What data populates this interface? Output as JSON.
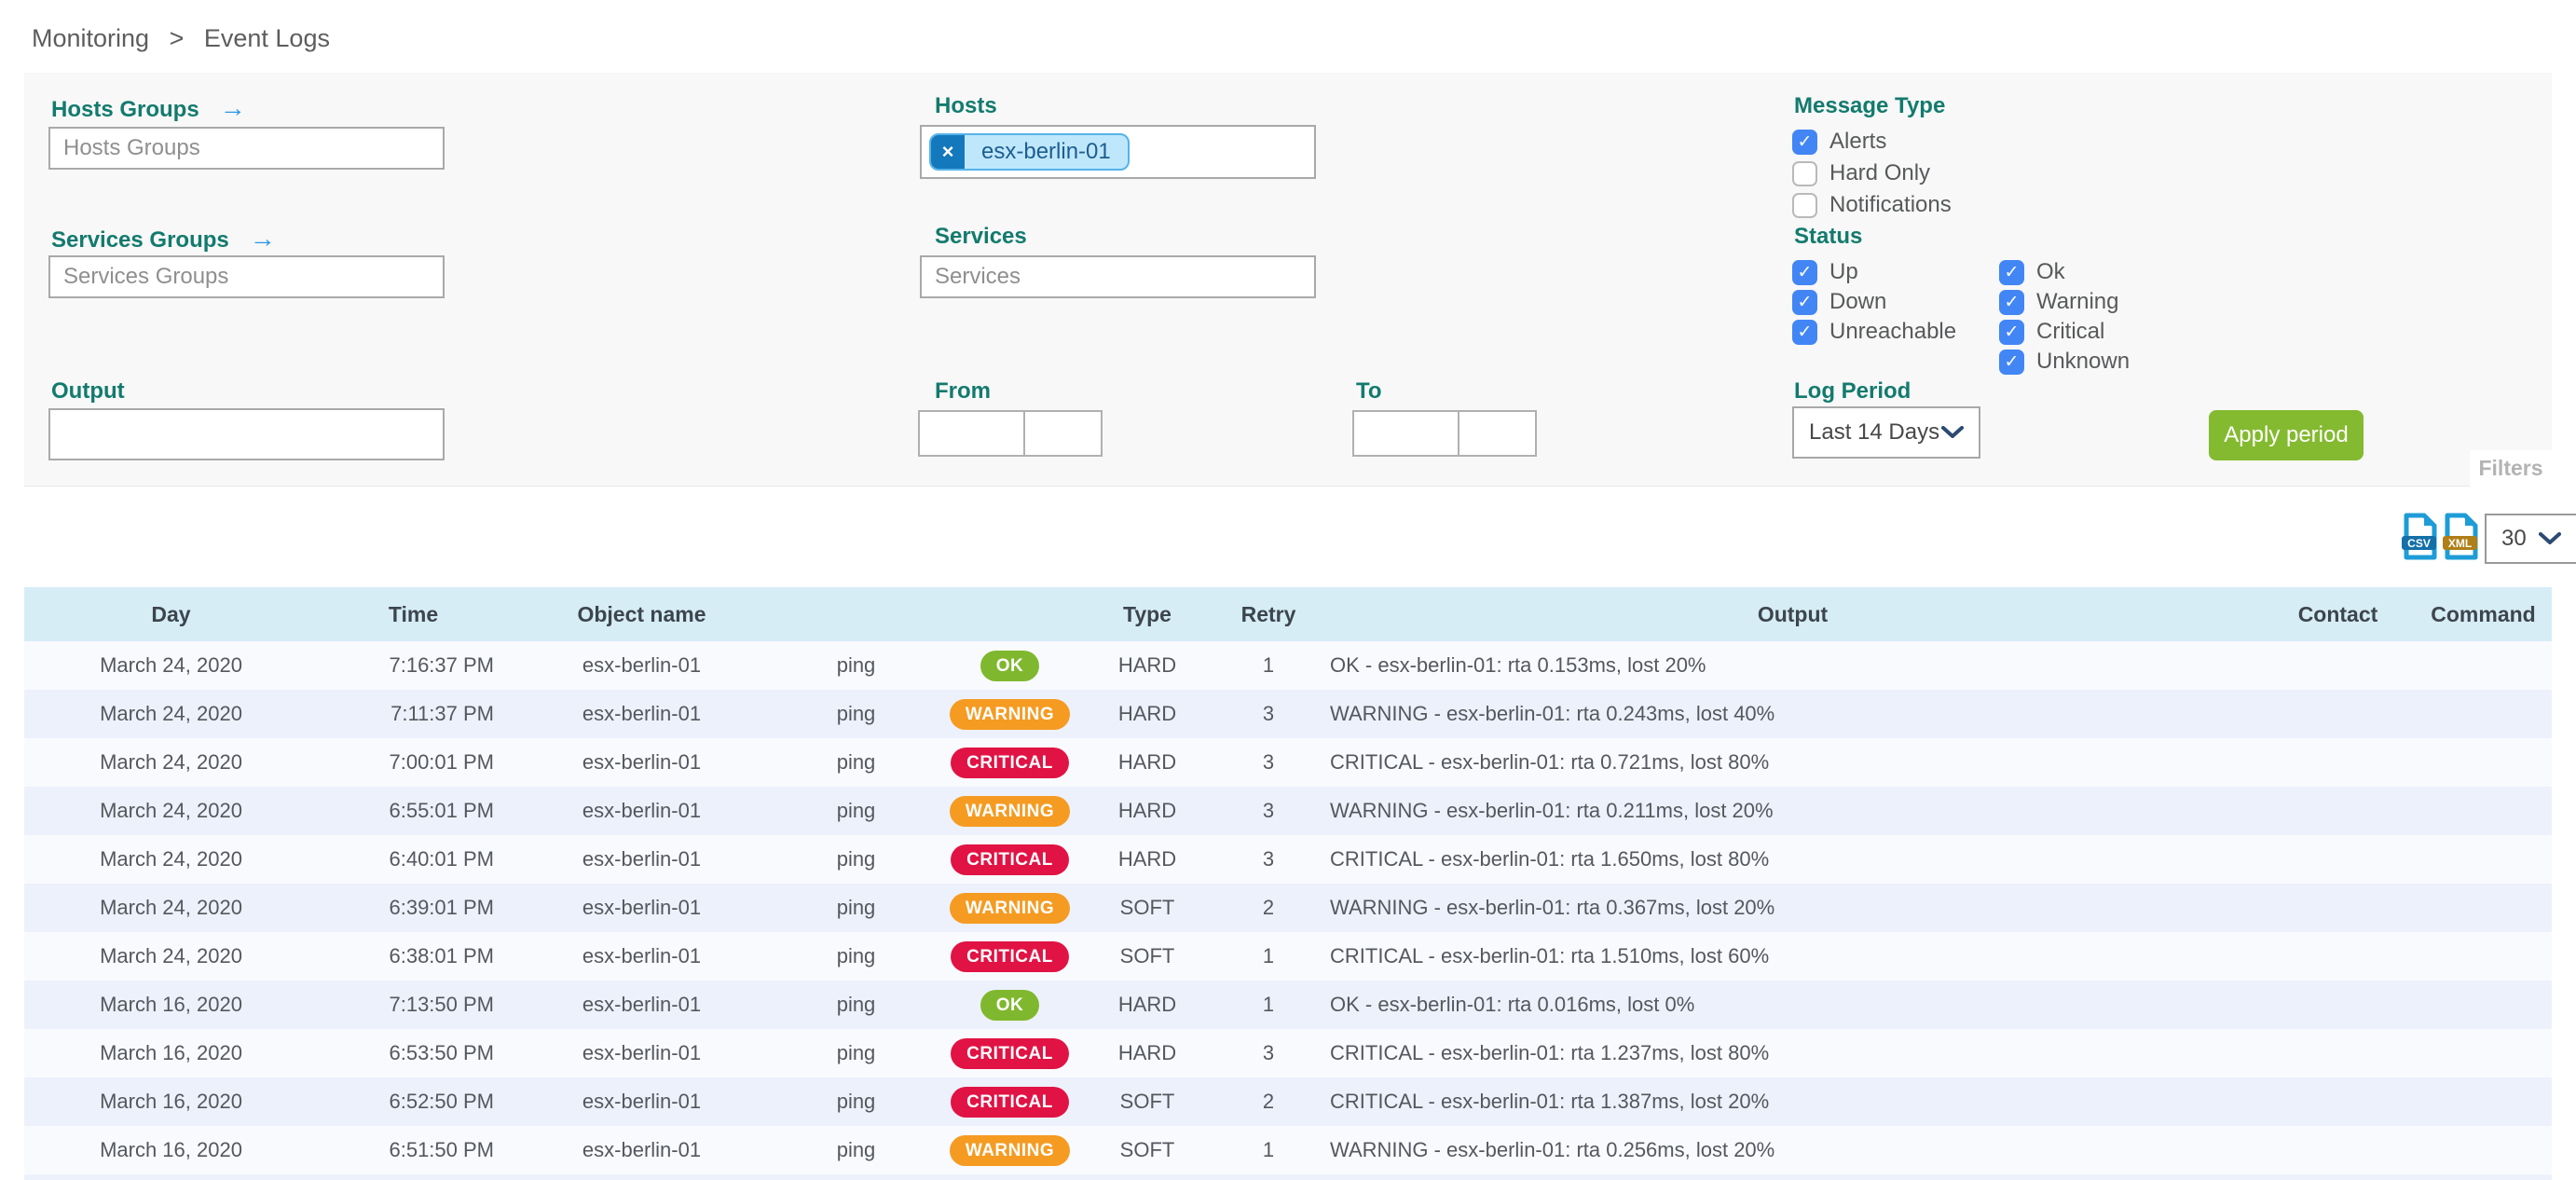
{
  "breadcrumb": {
    "items": [
      "Monitoring",
      "Event Logs"
    ],
    "separator": ">"
  },
  "filters": {
    "tab_label": "Filters",
    "hosts_groups": {
      "label": "Hosts Groups",
      "placeholder": "Hosts Groups"
    },
    "services_groups": {
      "label": "Services Groups",
      "placeholder": "Services Groups"
    },
    "hosts": {
      "label": "Hosts",
      "chips": [
        "esx-berlin-01"
      ]
    },
    "services": {
      "label": "Services",
      "placeholder": "Services"
    },
    "output": {
      "label": "Output",
      "value": ""
    },
    "from": {
      "label": "From",
      "date_value": "",
      "time_value": ""
    },
    "to": {
      "label": "To",
      "date_value": "",
      "time_value": ""
    },
    "message_type": {
      "label": "Message Type",
      "options": [
        {
          "label": "Alerts",
          "checked": true
        },
        {
          "label": "Hard Only",
          "checked": false
        },
        {
          "label": "Notifications",
          "checked": false
        }
      ]
    },
    "status": {
      "label": "Status",
      "col1": [
        {
          "label": "Up",
          "checked": true
        },
        {
          "label": "Down",
          "checked": true
        },
        {
          "label": "Unreachable",
          "checked": true
        }
      ],
      "col2": [
        {
          "label": "Ok",
          "checked": true
        },
        {
          "label": "Warning",
          "checked": true
        },
        {
          "label": "Critical",
          "checked": true
        },
        {
          "label": "Unknown",
          "checked": true
        }
      ]
    },
    "log_period": {
      "label": "Log Period",
      "selected": "Last 14 Days"
    },
    "apply_button": "Apply period"
  },
  "toolbar": {
    "csv_export": "CSV",
    "xml_export": "XML",
    "page_size": "30"
  },
  "table": {
    "headers": {
      "day": "Day",
      "time": "Time",
      "object": "Object name",
      "service": "",
      "status": "",
      "type": "Type",
      "retry": "Retry",
      "output": "Output",
      "contact": "Contact",
      "command": "Command"
    },
    "rows": [
      {
        "day": "March 24, 2020",
        "time": "7:16:37 PM",
        "object": "esx-berlin-01",
        "service": "ping",
        "status": "OK",
        "type": "HARD",
        "retry": "1",
        "output": "OK - esx-berlin-01: rta 0.153ms, lost 20%",
        "contact": "",
        "command": ""
      },
      {
        "day": "March 24, 2020",
        "time": "7:11:37 PM",
        "object": "esx-berlin-01",
        "service": "ping",
        "status": "WARNING",
        "type": "HARD",
        "retry": "3",
        "output": "WARNING - esx-berlin-01: rta 0.243ms, lost 40%",
        "contact": "",
        "command": ""
      },
      {
        "day": "March 24, 2020",
        "time": "7:00:01 PM",
        "object": "esx-berlin-01",
        "service": "ping",
        "status": "CRITICAL",
        "type": "HARD",
        "retry": "3",
        "output": "CRITICAL - esx-berlin-01: rta 0.721ms, lost 80%",
        "contact": "",
        "command": ""
      },
      {
        "day": "March 24, 2020",
        "time": "6:55:01 PM",
        "object": "esx-berlin-01",
        "service": "ping",
        "status": "WARNING",
        "type": "HARD",
        "retry": "3",
        "output": "WARNING - esx-berlin-01: rta 0.211ms, lost 20%",
        "contact": "",
        "command": ""
      },
      {
        "day": "March 24, 2020",
        "time": "6:40:01 PM",
        "object": "esx-berlin-01",
        "service": "ping",
        "status": "CRITICAL",
        "type": "HARD",
        "retry": "3",
        "output": "CRITICAL - esx-berlin-01: rta 1.650ms, lost 80%",
        "contact": "",
        "command": ""
      },
      {
        "day": "March 24, 2020",
        "time": "6:39:01 PM",
        "object": "esx-berlin-01",
        "service": "ping",
        "status": "WARNING",
        "type": "SOFT",
        "retry": "2",
        "output": "WARNING - esx-berlin-01: rta 0.367ms, lost 20%",
        "contact": "",
        "command": ""
      },
      {
        "day": "March 24, 2020",
        "time": "6:38:01 PM",
        "object": "esx-berlin-01",
        "service": "ping",
        "status": "CRITICAL",
        "type": "SOFT",
        "retry": "1",
        "output": "CRITICAL - esx-berlin-01: rta 1.510ms, lost 60%",
        "contact": "",
        "command": ""
      },
      {
        "day": "March 16, 2020",
        "time": "7:13:50 PM",
        "object": "esx-berlin-01",
        "service": "ping",
        "status": "OK",
        "type": "HARD",
        "retry": "1",
        "output": "OK - esx-berlin-01: rta 0.016ms, lost 0%",
        "contact": "",
        "command": ""
      },
      {
        "day": "March 16, 2020",
        "time": "6:53:50 PM",
        "object": "esx-berlin-01",
        "service": "ping",
        "status": "CRITICAL",
        "type": "HARD",
        "retry": "3",
        "output": "CRITICAL - esx-berlin-01: rta 1.237ms, lost 80%",
        "contact": "",
        "command": ""
      },
      {
        "day": "March 16, 2020",
        "time": "6:52:50 PM",
        "object": "esx-berlin-01",
        "service": "ping",
        "status": "CRITICAL",
        "type": "SOFT",
        "retry": "2",
        "output": "CRITICAL - esx-berlin-01: rta 1.387ms, lost 20%",
        "contact": "",
        "command": ""
      },
      {
        "day": "March 16, 2020",
        "time": "6:51:50 PM",
        "object": "esx-berlin-01",
        "service": "ping",
        "status": "WARNING",
        "type": "SOFT",
        "retry": "1",
        "output": "WARNING - esx-berlin-01: rta 0.256ms, lost 20%",
        "contact": "",
        "command": ""
      }
    ]
  },
  "colors": {
    "accent_teal": "#137a6e",
    "link_arrow_blue": "#2e96e8",
    "checkbox_blue": "#4286f5",
    "chip_bg": "#bfe7fc",
    "chip_remove_bg": "#1478bd",
    "apply_button_green": "#84ba30",
    "table_header_bg": "#d6edf6",
    "row_stripe": "#edf1fb",
    "badge_ok": "#7fb82e",
    "badge_warning": "#f59b22",
    "badge_critical": "#e11344"
  }
}
